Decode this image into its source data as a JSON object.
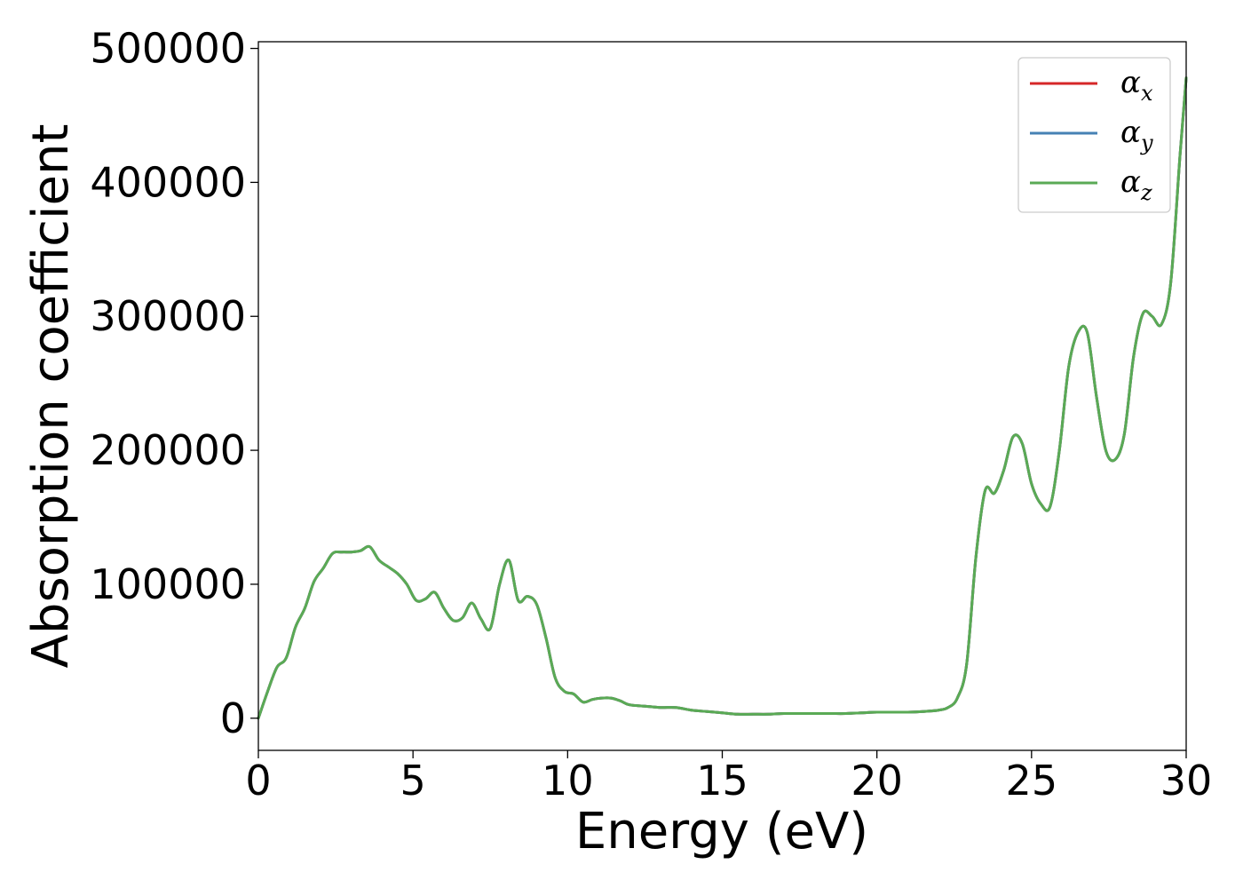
{
  "chart_data": {
    "type": "line",
    "title": "",
    "xlabel": "Energy (eV)",
    "ylabel": "Absorption coefficient",
    "xlim": [
      0,
      30
    ],
    "ylim": [
      -24000,
      505000
    ],
    "xticks": [
      0,
      5,
      10,
      15,
      20,
      25,
      30
    ],
    "yticks": [
      0,
      100000,
      200000,
      300000,
      400000,
      500000
    ],
    "xtick_labels": [
      "0",
      "5",
      "10",
      "15",
      "20",
      "25",
      "30"
    ],
    "ytick_labels": [
      "0",
      "100000",
      "200000",
      "300000",
      "400000",
      "500000"
    ],
    "grid": false,
    "legend_position": "top-right",
    "x": [
      0,
      0.3,
      0.6,
      0.9,
      1.2,
      1.5,
      1.8,
      2.1,
      2.4,
      2.7,
      3.0,
      3.3,
      3.6,
      3.9,
      4.2,
      4.5,
      4.8,
      5.1,
      5.4,
      5.7,
      6.0,
      6.3,
      6.6,
      6.9,
      7.2,
      7.5,
      7.8,
      8.1,
      8.4,
      8.7,
      9.0,
      9.3,
      9.6,
      9.9,
      10.2,
      10.5,
      10.8,
      11.1,
      11.4,
      11.7,
      12.0,
      12.5,
      13.0,
      13.5,
      14.0,
      14.5,
      15.0,
      15.5,
      16.0,
      16.5,
      17.0,
      17.5,
      18.0,
      18.5,
      19.0,
      19.5,
      20.0,
      20.5,
      21.0,
      21.5,
      22.0,
      22.3,
      22.6,
      22.9,
      23.2,
      23.5,
      23.8,
      24.1,
      24.4,
      24.7,
      25.0,
      25.3,
      25.6,
      25.9,
      26.2,
      26.5,
      26.8,
      27.1,
      27.4,
      27.7,
      28.0,
      28.3,
      28.6,
      28.9,
      29.2,
      29.5,
      29.8,
      30.0
    ],
    "series": [
      {
        "name": "α_x",
        "label_base": "α",
        "label_sub": "x",
        "color": "#d62728",
        "values": [
          0,
          20000,
          38000,
          45000,
          68000,
          82000,
          102000,
          112000,
          123000,
          124000,
          124000,
          125000,
          128000,
          118000,
          113000,
          108000,
          100000,
          88000,
          89000,
          94000,
          82000,
          73000,
          75000,
          86000,
          74000,
          67000,
          100000,
          118000,
          88000,
          91000,
          85000,
          60000,
          30000,
          20000,
          18000,
          12000,
          14000,
          15000,
          15000,
          13000,
          10000,
          9000,
          8000,
          8000,
          6000,
          5000,
          4000,
          3000,
          3000,
          3000,
          3500,
          3500,
          3500,
          3500,
          3500,
          4000,
          4500,
          4500,
          4500,
          5000,
          6000,
          8000,
          15000,
          40000,
          120000,
          170000,
          168000,
          185000,
          210000,
          205000,
          175000,
          160000,
          158000,
          200000,
          262000,
          288000,
          288000,
          240000,
          200000,
          193000,
          212000,
          270000,
          302000,
          300000,
          294000,
          325000,
          420000,
          478000
        ]
      },
      {
        "name": "α_y",
        "label_base": "α",
        "label_sub": "y",
        "color": "#4682b4",
        "values": [
          0,
          20000,
          38000,
          45000,
          68000,
          82000,
          102000,
          112000,
          123000,
          124000,
          124000,
          125000,
          128000,
          118000,
          113000,
          108000,
          100000,
          88000,
          89000,
          94000,
          82000,
          73000,
          75000,
          86000,
          74000,
          67000,
          100000,
          118000,
          88000,
          91000,
          85000,
          60000,
          30000,
          20000,
          18000,
          12000,
          14000,
          15000,
          15000,
          13000,
          10000,
          9000,
          8000,
          8000,
          6000,
          5000,
          4000,
          3000,
          3000,
          3000,
          3500,
          3500,
          3500,
          3500,
          3500,
          4000,
          4500,
          4500,
          4500,
          5000,
          6000,
          8000,
          15000,
          40000,
          120000,
          170000,
          168000,
          185000,
          210000,
          205000,
          175000,
          160000,
          158000,
          200000,
          262000,
          288000,
          288000,
          240000,
          200000,
          193000,
          212000,
          270000,
          302000,
          300000,
          294000,
          325000,
          420000,
          478000
        ]
      },
      {
        "name": "α_z",
        "label_base": "α",
        "label_sub": "z",
        "color": "#5aaa55",
        "values": [
          0,
          20000,
          38000,
          45000,
          68000,
          82000,
          102000,
          112000,
          123000,
          124000,
          124000,
          125000,
          128000,
          118000,
          113000,
          108000,
          100000,
          88000,
          89000,
          94000,
          82000,
          73000,
          75000,
          86000,
          74000,
          67000,
          100000,
          118000,
          88000,
          91000,
          85000,
          60000,
          30000,
          20000,
          18000,
          12000,
          14000,
          15000,
          15000,
          13000,
          10000,
          9000,
          8000,
          8000,
          6000,
          5000,
          4000,
          3000,
          3000,
          3000,
          3500,
          3500,
          3500,
          3500,
          3500,
          4000,
          4500,
          4500,
          4500,
          5000,
          6000,
          8000,
          15000,
          40000,
          120000,
          170000,
          168000,
          185000,
          210000,
          205000,
          175000,
          160000,
          158000,
          200000,
          262000,
          288000,
          288000,
          240000,
          200000,
          193000,
          212000,
          270000,
          302000,
          300000,
          294000,
          325000,
          420000,
          478000
        ]
      }
    ]
  }
}
